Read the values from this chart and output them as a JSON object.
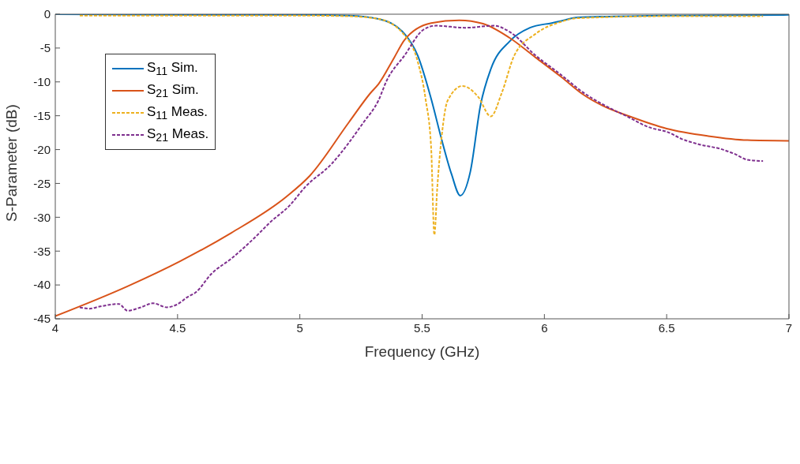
{
  "chart_data": {
    "type": "line",
    "xlabel": "Frequency (GHz)",
    "ylabel": "S-Parameter (dB)",
    "xlim": [
      4,
      7
    ],
    "xticks": [
      4,
      4.5,
      5,
      5.5,
      6,
      6.5,
      7
    ],
    "ylim": [
      -45,
      0
    ],
    "yticks": [
      -45,
      -40,
      -35,
      -30,
      -25,
      -20,
      -15,
      -10,
      -5,
      0
    ],
    "grid": false,
    "legend": "top left",
    "marker": "none",
    "series": [
      {
        "name": "S$_{11}$ Sim.",
        "color": "#0072bd",
        "line_style": "solid",
        "x": [
          4,
          4.5,
          5,
          5.2,
          5.322,
          5.428,
          5.482,
          5.537,
          5.579,
          5.62,
          5.656,
          5.697,
          5.739,
          5.781,
          5.858,
          5.941,
          6.03,
          6.07,
          6.13,
          6.5,
          7
        ],
        "values": [
          0,
          -0.1,
          -0.1,
          -0.2,
          -0.7,
          -2.9,
          -6.1,
          -12.5,
          -18.4,
          -23.6,
          -26.8,
          -23.3,
          -13.4,
          -8.1,
          -4.0,
          -2.0,
          -1.3,
          -1.0,
          -0.5,
          -0.2,
          -0.1
        ]
      },
      {
        "name": "S$_{21}$ Sim.",
        "color": "#d95319",
        "line_style": "solid",
        "x": [
          4,
          4.295,
          4.51,
          4.72,
          4.94,
          5.04,
          5.2,
          5.29,
          5.322,
          5.386,
          5.428,
          5.537,
          5.652,
          5.749,
          5.858,
          5.964,
          6.07,
          6.156,
          6.243,
          6.349,
          6.5,
          6.67,
          6.83,
          7
        ],
        "values": [
          -44.6,
          -40.2,
          -36.5,
          -32.3,
          -27.1,
          -23.9,
          -16.0,
          -11.6,
          -10.3,
          -6.4,
          -3.8,
          -1.3,
          -0.9,
          -1.4,
          -3.5,
          -6.4,
          -9.3,
          -11.8,
          -13.6,
          -15.1,
          -16.9,
          -18.0,
          -18.6,
          -18.7
        ]
      },
      {
        "name": "S$_{11}$ Meas.",
        "color": "#edb120",
        "line_style": "dashed",
        "x": [
          4.1,
          4.5,
          5,
          5.2,
          5.322,
          5.428,
          5.482,
          5.514,
          5.537,
          5.55,
          5.562,
          5.579,
          5.604,
          5.665,
          5.729,
          5.781,
          5.826,
          5.877,
          5.964,
          6.07,
          6.13,
          6.5,
          6.894
        ],
        "values": [
          -0.2,
          -0.2,
          -0.2,
          -0.3,
          -0.7,
          -3.1,
          -7.0,
          -12.5,
          -19.8,
          -32.6,
          -25.6,
          -18.4,
          -12.8,
          -10.6,
          -12.2,
          -15.1,
          -11.6,
          -6.1,
          -2.9,
          -1.1,
          -0.6,
          -0.3,
          -0.3
        ]
      },
      {
        "name": "S$_{21}$ Meas.",
        "color": "#7e2f8e",
        "line_style": "dashed",
        "x": [
          4.1,
          4.14,
          4.18,
          4.26,
          4.295,
          4.35,
          4.4,
          4.456,
          4.497,
          4.54,
          4.574,
          4.64,
          4.72,
          4.81,
          4.88,
          4.96,
          5.02,
          5.13,
          5.26,
          5.322,
          5.354,
          5.428,
          5.505,
          5.556,
          5.675,
          5.794,
          5.858,
          5.964,
          6.07,
          6.156,
          6.243,
          6.349,
          6.42,
          6.51,
          6.56,
          6.63,
          6.72,
          6.775,
          6.83,
          6.894
        ],
        "values": [
          -43.3,
          -43.5,
          -43.2,
          -42.8,
          -43.8,
          -43.3,
          -42.7,
          -43.3,
          -42.9,
          -41.8,
          -41.1,
          -38.3,
          -36.1,
          -33.2,
          -30.7,
          -28.2,
          -25.6,
          -22.1,
          -16.0,
          -12.7,
          -9.9,
          -6.1,
          -2.3,
          -1.7,
          -2.0,
          -1.7,
          -2.6,
          -6.1,
          -9.0,
          -11.5,
          -13.4,
          -15.3,
          -16.6,
          -17.5,
          -18.4,
          -19.2,
          -19.9,
          -20.6,
          -21.5,
          -21.7
        ]
      }
    ]
  }
}
